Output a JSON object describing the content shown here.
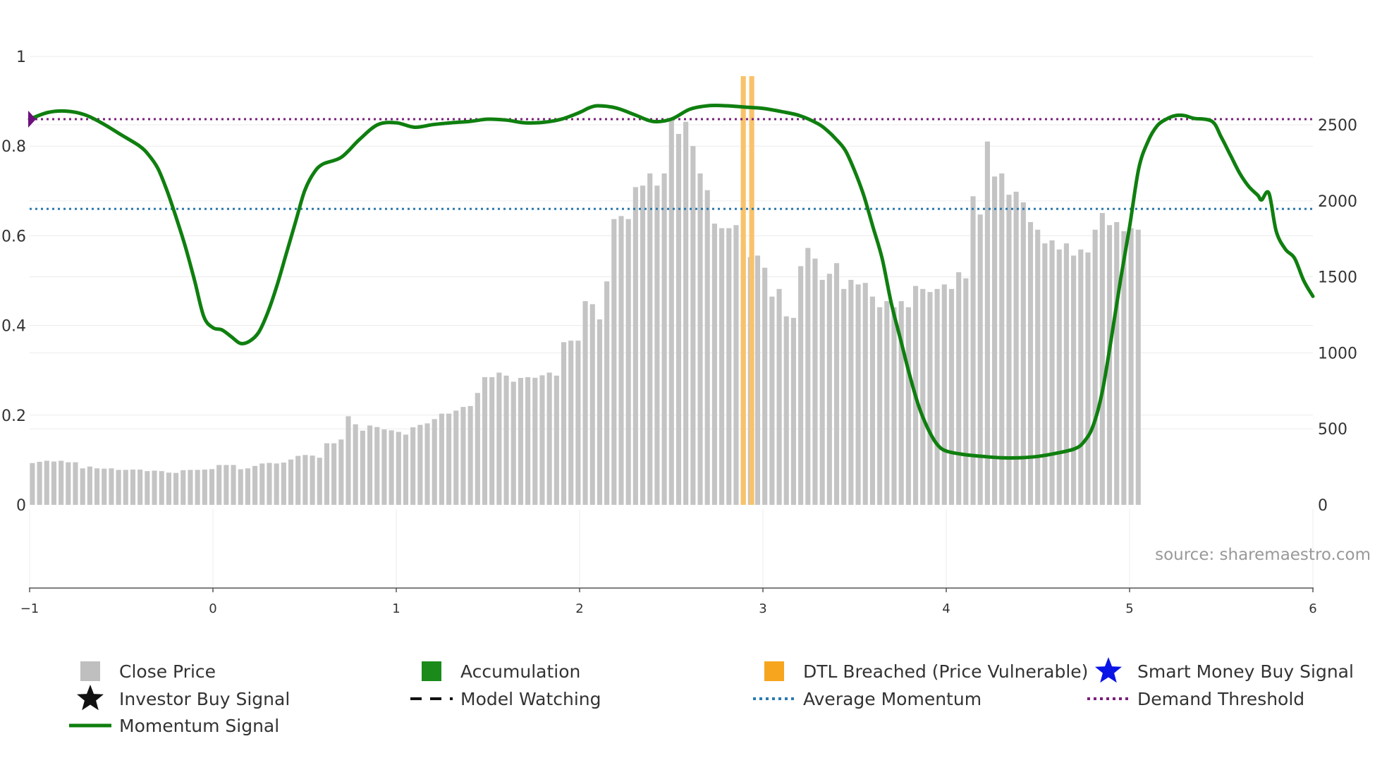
{
  "chart_data": {
    "type": "bar+line",
    "x_axis": {
      "range": [
        -1,
        6
      ],
      "ticks": [
        "−1",
        "0",
        "1",
        "2",
        "3",
        "4",
        "5",
        "6"
      ]
    },
    "y_left": {
      "range": [
        0,
        1
      ],
      "ticks": [
        "0",
        "0.2",
        "0.4",
        "0.6",
        "0.8",
        "1"
      ]
    },
    "y_right": {
      "range": [
        0,
        2950
      ],
      "ticks": [
        "0",
        "500",
        "1000",
        "1500",
        "2000",
        "2500"
      ]
    },
    "source_label": "source: sharemaestro.com",
    "colors": {
      "bar": "#c4c4c4",
      "dtl": "#f9c26a",
      "momentum": "#0f7f0f",
      "average": "#2a7ab0",
      "demand": "#7a1f7a",
      "marker": "#6f0f7f"
    },
    "close_price": [
      275,
      283,
      290,
      285,
      290,
      280,
      280,
      240,
      252,
      240,
      238,
      240,
      230,
      230,
      232,
      232,
      222,
      225,
      222,
      212,
      210,
      228,
      230,
      230,
      232,
      235,
      262,
      262,
      262,
      234,
      240,
      256,
      272,
      276,
      272,
      278,
      298,
      322,
      328,
      324,
      310,
      405,
      405,
      430,
      583,
      530,
      488,
      522,
      512,
      496,
      490,
      480,
      462,
      510,
      526,
      536,
      564,
      600,
      600,
      620,
      644,
      650,
      736,
      840,
      840,
      870,
      850,
      810,
      835,
      840,
      836,
      852,
      870,
      850,
      1070,
      1080,
      1080,
      1340,
      1320,
      1220,
      1470,
      1880,
      1900,
      1880,
      2090,
      2100,
      2180,
      2100,
      2180,
      2540,
      2440,
      2520,
      2360,
      2180,
      2070,
      1850,
      1820,
      1820,
      1840,
      1710,
      1630,
      1640,
      1560,
      1370,
      1420,
      1240,
      1230,
      1570,
      1690,
      1620,
      1480,
      1520,
      1590,
      1420,
      1480,
      1450,
      1460,
      1370,
      1300,
      1340,
      1300,
      1340,
      1300,
      1440,
      1420,
      1400,
      1420,
      1450,
      1420,
      1530,
      1490,
      2030,
      1910,
      2390,
      2160,
      2180,
      2040,
      2060,
      1990,
      1860,
      1810,
      1720,
      1740,
      1680,
      1720,
      1640,
      1680,
      1660,
      1810,
      1920,
      1840,
      1860,
      1800,
      1820,
      1810
    ],
    "close_x_start": -0.985,
    "close_x_step": 0.03917,
    "dtl_breached_x": [
      2.893,
      2.939
    ],
    "dtl_breached_price": 2820,
    "momentum": [
      [
        -1,
        0.86
      ],
      [
        -0.9,
        0.875
      ],
      [
        -0.8,
        0.878
      ],
      [
        -0.7,
        0.87
      ],
      [
        -0.6,
        0.85
      ],
      [
        -0.5,
        0.825
      ],
      [
        -0.4,
        0.8
      ],
      [
        -0.35,
        0.78
      ],
      [
        -0.3,
        0.75
      ],
      [
        -0.25,
        0.7
      ],
      [
        -0.2,
        0.64
      ],
      [
        -0.15,
        0.575
      ],
      [
        -0.1,
        0.5
      ],
      [
        -0.05,
        0.42
      ],
      [
        0,
        0.395
      ],
      [
        0.05,
        0.39
      ],
      [
        0.1,
        0.375
      ],
      [
        0.15,
        0.36
      ],
      [
        0.2,
        0.365
      ],
      [
        0.25,
        0.385
      ],
      [
        0.3,
        0.43
      ],
      [
        0.35,
        0.49
      ],
      [
        0.4,
        0.56
      ],
      [
        0.45,
        0.63
      ],
      [
        0.5,
        0.7
      ],
      [
        0.55,
        0.74
      ],
      [
        0.6,
        0.76
      ],
      [
        0.7,
        0.775
      ],
      [
        0.8,
        0.815
      ],
      [
        0.9,
        0.848
      ],
      [
        1,
        0.852
      ],
      [
        1.1,
        0.842
      ],
      [
        1.2,
        0.848
      ],
      [
        1.3,
        0.852
      ],
      [
        1.4,
        0.855
      ],
      [
        1.5,
        0.86
      ],
      [
        1.6,
        0.858
      ],
      [
        1.7,
        0.852
      ],
      [
        1.8,
        0.853
      ],
      [
        1.9,
        0.86
      ],
      [
        2,
        0.875
      ],
      [
        2.05,
        0.885
      ],
      [
        2.1,
        0.89
      ],
      [
        2.2,
        0.885
      ],
      [
        2.3,
        0.87
      ],
      [
        2.4,
        0.855
      ],
      [
        2.5,
        0.86
      ],
      [
        2.6,
        0.882
      ],
      [
        2.7,
        0.89
      ],
      [
        2.8,
        0.89
      ],
      [
        2.9,
        0.887
      ],
      [
        3,
        0.884
      ],
      [
        3.1,
        0.877
      ],
      [
        3.2,
        0.868
      ],
      [
        3.3,
        0.85
      ],
      [
        3.35,
        0.835
      ],
      [
        3.4,
        0.815
      ],
      [
        3.45,
        0.79
      ],
      [
        3.5,
        0.745
      ],
      [
        3.55,
        0.69
      ],
      [
        3.6,
        0.62
      ],
      [
        3.65,
        0.55
      ],
      [
        3.7,
        0.45
      ],
      [
        3.75,
        0.37
      ],
      [
        3.8,
        0.29
      ],
      [
        3.85,
        0.22
      ],
      [
        3.9,
        0.17
      ],
      [
        3.95,
        0.135
      ],
      [
        4,
        0.12
      ],
      [
        4.1,
        0.112
      ],
      [
        4.2,
        0.108
      ],
      [
        4.3,
        0.105
      ],
      [
        4.4,
        0.105
      ],
      [
        4.5,
        0.108
      ],
      [
        4.6,
        0.115
      ],
      [
        4.7,
        0.125
      ],
      [
        4.75,
        0.14
      ],
      [
        4.8,
        0.175
      ],
      [
        4.85,
        0.25
      ],
      [
        4.9,
        0.37
      ],
      [
        4.95,
        0.5
      ],
      [
        5,
        0.62
      ],
      [
        5.05,
        0.75
      ],
      [
        5.1,
        0.81
      ],
      [
        5.15,
        0.845
      ],
      [
        5.2,
        0.86
      ],
      [
        5.25,
        0.868
      ],
      [
        5.3,
        0.868
      ],
      [
        5.35,
        0.862
      ],
      [
        5.45,
        0.855
      ],
      [
        5.5,
        0.82
      ],
      [
        5.55,
        0.78
      ],
      [
        5.6,
        0.74
      ],
      [
        5.65,
        0.71
      ],
      [
        5.7,
        0.69
      ],
      [
        5.72,
        0.68
      ],
      [
        5.76,
        0.695
      ],
      [
        5.8,
        0.61
      ],
      [
        5.85,
        0.57
      ],
      [
        5.9,
        0.55
      ],
      [
        5.95,
        0.5
      ],
      [
        6,
        0.465
      ]
    ],
    "average_momentum": 0.66,
    "demand_threshold": 0.86,
    "smart_money_buy_signal": [
      [
        -1,
        0.86
      ]
    ],
    "legend": [
      {
        "label": "Close Price",
        "symbol": "square",
        "color": "#bfbfbf"
      },
      {
        "label": "Accumulation",
        "symbol": "square",
        "color": "#1a8a1a"
      },
      {
        "label": "DTL Breached (Price Vulnerable)",
        "symbol": "square",
        "color": "#f7a51f"
      },
      {
        "label": "Smart Money Buy Signal",
        "symbol": "star",
        "color": "#0a14e6"
      },
      {
        "label": "Investor Buy Signal",
        "symbol": "star",
        "color": "#111111"
      },
      {
        "label": "Model Watching",
        "symbol": "dash",
        "color": "#111111"
      },
      {
        "label": "Average Momentum",
        "symbol": "dot",
        "color": "#2a7ab0"
      },
      {
        "label": "Demand Threshold",
        "symbol": "dot",
        "color": "#7a1f7a"
      },
      {
        "label": "Momentum Signal",
        "symbol": "line",
        "color": "#0f7f0f"
      }
    ]
  }
}
